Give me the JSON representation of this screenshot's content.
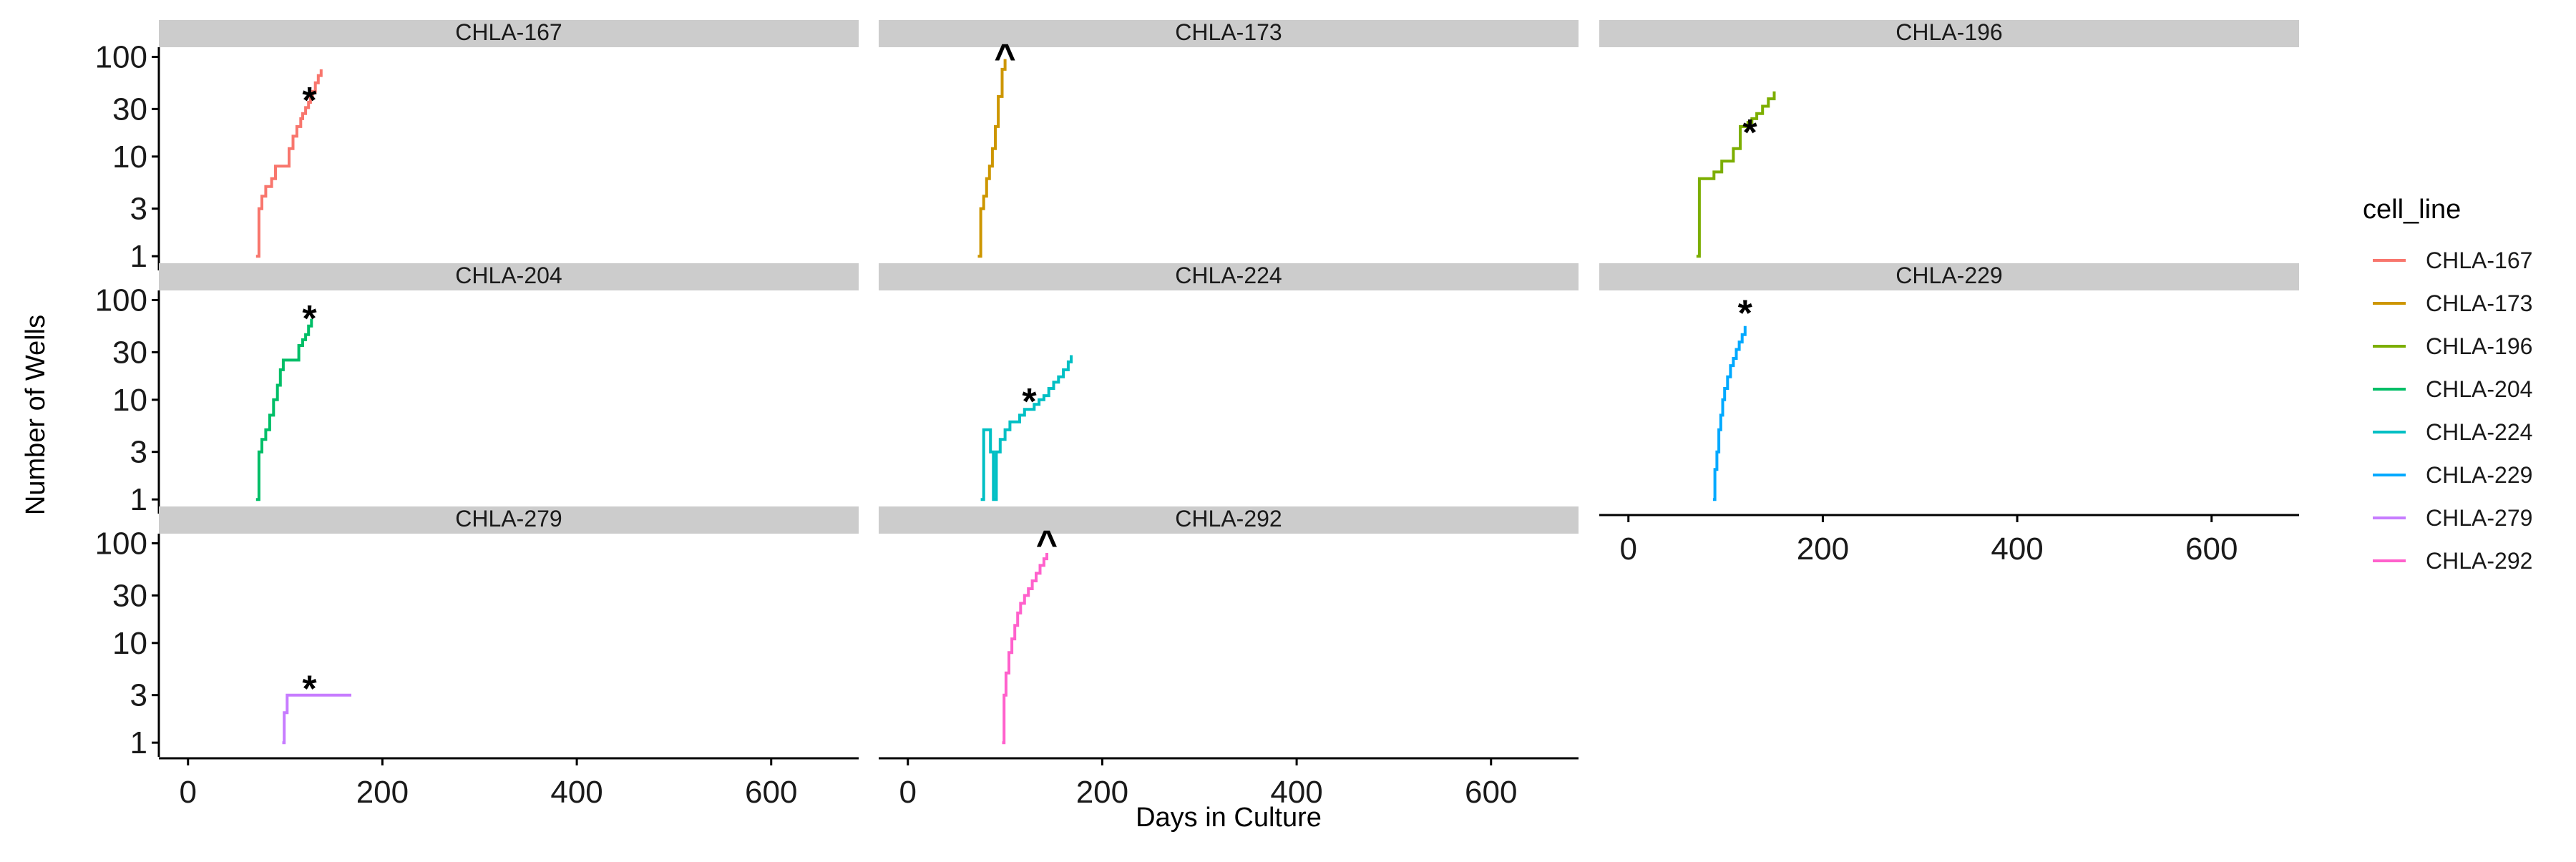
{
  "chart_data": {
    "type": "line",
    "facet_by": "cell_line",
    "xlabel": "Days in Culture",
    "ylabel": "Number of Wells",
    "x_ticks": [
      0,
      200,
      400,
      600
    ],
    "xlim": [
      -30,
      690
    ],
    "y_scale": "log10",
    "y_ticks": [
      1,
      3,
      10,
      30,
      100
    ],
    "ylim": [
      0.85,
      125
    ],
    "grid": false,
    "legend": {
      "title": "cell_line",
      "position": "right"
    },
    "series": [
      {
        "name": "CHLA-167",
        "color": "#F8766D",
        "marker": "*",
        "marker_point": [
          125,
          42
        ],
        "x": [
          70,
          73,
          76,
          80,
          86,
          90,
          96,
          104,
          108,
          112,
          116,
          118,
          121,
          124,
          126,
          128,
          131,
          134,
          137
        ],
        "y": [
          1,
          3,
          4,
          5,
          6,
          8,
          8,
          12,
          16,
          20,
          24,
          27,
          31,
          35,
          40,
          45,
          55,
          65,
          75
        ]
      },
      {
        "name": "CHLA-173",
        "color": "#CD9600",
        "marker": "^",
        "marker_point": [
          100,
          100
        ],
        "x": [
          72,
          75,
          78,
          81,
          84,
          87,
          90,
          93,
          97,
          100
        ],
        "y": [
          1,
          3,
          4,
          6,
          8,
          12,
          20,
          40,
          75,
          95
        ]
      },
      {
        "name": "CHLA-196",
        "color": "#7CAE00",
        "marker": "*",
        "marker_point": [
          125,
          20
        ],
        "x": [
          70,
          73,
          80,
          88,
          96,
          102,
          108,
          115,
          120,
          123,
          127,
          132,
          138,
          144,
          150
        ],
        "y": [
          1,
          6,
          6,
          7,
          9,
          9,
          12,
          20,
          20,
          22,
          24,
          27,
          32,
          38,
          45
        ]
      },
      {
        "name": "CHLA-204",
        "color": "#00BE67",
        "marker": "*",
        "marker_point": [
          125,
          75
        ],
        "x": [
          70,
          73,
          76,
          80,
          84,
          88,
          92,
          95,
          98,
          105,
          112,
          114,
          118,
          121,
          124,
          127
        ],
        "y": [
          1,
          3,
          4,
          5,
          7,
          10,
          14,
          20,
          25,
          25,
          25,
          35,
          40,
          45,
          55,
          65
        ]
      },
      {
        "name": "CHLA-224",
        "color": "#00BFC4",
        "marker": "*",
        "marker_point": [
          125,
          11
        ],
        "x": [
          75,
          78,
          82,
          85,
          88,
          91,
          95,
          100,
          105,
          110,
          115,
          120,
          125,
          130,
          135,
          140,
          145,
          150,
          155,
          160,
          165,
          168
        ],
        "y": [
          1,
          5,
          5,
          3,
          1,
          3,
          4,
          5,
          6,
          6,
          7,
          8,
          8,
          9,
          10,
          11,
          13,
          15,
          17,
          20,
          24,
          28
        ]
      },
      {
        "name": "CHLA-229",
        "color": "#00A9FF",
        "marker": "*",
        "marker_point": [
          120,
          85
        ],
        "x": [
          87,
          89,
          91,
          93,
          95,
          97,
          99,
          102,
          105,
          108,
          111,
          114,
          117,
          120
        ],
        "y": [
          1,
          2,
          3,
          5,
          7,
          10,
          13,
          17,
          22,
          26,
          32,
          38,
          45,
          55
        ]
      },
      {
        "name": "CHLA-279",
        "color": "#C77CFF",
        "marker": "*",
        "marker_point": [
          125,
          4
        ],
        "x": [
          97,
          99,
          102,
          108,
          120,
          140,
          168
        ],
        "y": [
          1,
          2,
          3,
          3,
          3,
          3,
          3
        ]
      },
      {
        "name": "CHLA-292",
        "color": "#FF61CC",
        "marker": "^",
        "marker_point": [
          143,
          100
        ],
        "x": [
          97,
          99,
          101,
          104,
          107,
          110,
          113,
          116,
          120,
          124,
          128,
          132,
          136,
          140,
          143
        ],
        "y": [
          1,
          3,
          5,
          8,
          11,
          15,
          20,
          25,
          30,
          35,
          42,
          50,
          60,
          70,
          80
        ]
      }
    ]
  }
}
